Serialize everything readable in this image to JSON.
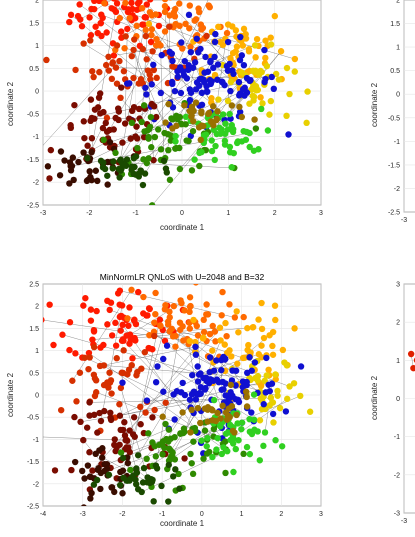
{
  "chart_data": [
    {
      "type": "scatter",
      "title": "",
      "xlabel": "coordinate 1",
      "ylabel": "coordinate 2",
      "xlim": [
        -3,
        3
      ],
      "ylim": [
        -2.5,
        2
      ],
      "xticks": [
        "-3",
        "-2",
        "-1",
        "0",
        "1",
        "2",
        "3"
      ],
      "yticks": [
        "-2.5",
        "-2",
        "-1.5",
        "-1",
        "-0.5",
        "0",
        "0.5",
        "1",
        "1.5",
        "2"
      ],
      "grid": true,
      "clusters": [
        {
          "color": "#ff1a00",
          "cx": -1.3,
          "cy": 1.7,
          "sx": 0.55,
          "sy": 0.35,
          "n": 70
        },
        {
          "color": "#ff6a00",
          "cx": -0.3,
          "cy": 1.5,
          "sx": 0.6,
          "sy": 0.4,
          "n": 60
        },
        {
          "color": "#ffb000",
          "cx": 1.2,
          "cy": 0.9,
          "sx": 0.55,
          "sy": 0.5,
          "n": 60
        },
        {
          "color": "#e8d000",
          "cx": 1.6,
          "cy": 0.1,
          "sx": 0.4,
          "sy": 0.4,
          "n": 40
        },
        {
          "color": "#d63000",
          "cx": -0.9,
          "cy": 0.6,
          "sx": 0.7,
          "sy": 0.35,
          "n": 50
        },
        {
          "color": "#1010d0",
          "cx": 0.5,
          "cy": 0.2,
          "sx": 0.8,
          "sy": 0.45,
          "n": 110
        },
        {
          "color": "#7a0c00",
          "cx": -1.5,
          "cy": -0.9,
          "sx": 0.6,
          "sy": 0.4,
          "n": 60
        },
        {
          "color": "#3a0d00",
          "cx": -2.0,
          "cy": -1.6,
          "sx": 0.4,
          "sy": 0.25,
          "n": 35
        },
        {
          "color": "#2f8a00",
          "cx": -0.3,
          "cy": -1.1,
          "sx": 0.6,
          "sy": 0.35,
          "n": 60
        },
        {
          "color": "#30d020",
          "cx": 0.8,
          "cy": -1.0,
          "sx": 0.45,
          "sy": 0.3,
          "n": 55
        },
        {
          "color": "#1a4a00",
          "cx": -1.2,
          "cy": -1.7,
          "sx": 0.5,
          "sy": 0.2,
          "n": 35
        },
        {
          "color": "#9a7000",
          "cx": 0.5,
          "cy": -0.5,
          "sx": 0.5,
          "sy": 0.2,
          "n": 30
        }
      ]
    },
    {
      "type": "scatter",
      "title": "",
      "xlabel": "",
      "ylabel": "coordinate 2",
      "xlim": [
        -3,
        3
      ],
      "ylim": [
        -2.5,
        2
      ],
      "yticks": [
        "-2.5",
        "-2",
        "-1.5",
        "-1",
        "-0.5",
        "0",
        "0.5",
        "1",
        "1.5",
        "2"
      ],
      "xticks": [
        "-3"
      ],
      "grid": true,
      "clusters": []
    },
    {
      "type": "scatter",
      "title": "MinNormLR QNLoS with U=2048 and B=32",
      "xlabel": "coordinate 1",
      "ylabel": "coordinate 2",
      "xlim": [
        -4,
        3
      ],
      "ylim": [
        -2.5,
        2.5
      ],
      "xticks": [
        "-4",
        "-3",
        "-2",
        "-1",
        "0",
        "1",
        "2",
        "3"
      ],
      "yticks": [
        "-2.5",
        "-2",
        "-1.5",
        "-1",
        "-0.5",
        "0",
        "0.5",
        "1",
        "1.5",
        "2",
        "2.5"
      ],
      "grid": true,
      "clusters": [
        {
          "color": "#ff1a00",
          "cx": -2.0,
          "cy": 1.6,
          "sx": 0.7,
          "sy": 0.4,
          "n": 70
        },
        {
          "color": "#ff6a00",
          "cx": -0.6,
          "cy": 1.6,
          "sx": 0.7,
          "sy": 0.4,
          "n": 60
        },
        {
          "color": "#ffb000",
          "cx": 1.0,
          "cy": 1.0,
          "sx": 0.6,
          "sy": 0.5,
          "n": 60
        },
        {
          "color": "#e8d000",
          "cx": 1.7,
          "cy": 0.0,
          "sx": 0.45,
          "sy": 0.4,
          "n": 35
        },
        {
          "color": "#d63000",
          "cx": -2.2,
          "cy": 0.3,
          "sx": 0.6,
          "sy": 0.5,
          "n": 45
        },
        {
          "color": "#1010d0",
          "cx": 0.4,
          "cy": 0.1,
          "sx": 0.8,
          "sy": 0.45,
          "n": 110
        },
        {
          "color": "#7a0c00",
          "cx": -2.0,
          "cy": -1.0,
          "sx": 0.6,
          "sy": 0.4,
          "n": 55
        },
        {
          "color": "#3a0d00",
          "cx": -2.4,
          "cy": -1.8,
          "sx": 0.45,
          "sy": 0.25,
          "n": 35
        },
        {
          "color": "#2f8a00",
          "cx": -0.6,
          "cy": -1.2,
          "sx": 0.6,
          "sy": 0.4,
          "n": 60
        },
        {
          "color": "#30d020",
          "cx": 0.8,
          "cy": -0.9,
          "sx": 0.45,
          "sy": 0.35,
          "n": 50
        },
        {
          "color": "#1a4a00",
          "cx": -1.4,
          "cy": -1.9,
          "sx": 0.5,
          "sy": 0.2,
          "n": 35
        },
        {
          "color": "#9a7000",
          "cx": 0.3,
          "cy": -0.5,
          "sx": 0.5,
          "sy": 0.25,
          "n": 30
        }
      ]
    },
    {
      "type": "scatter",
      "title": "",
      "xlabel": "",
      "ylabel": "coordinate 2",
      "xlim": [
        -3,
        3
      ],
      "ylim": [
        -3,
        3
      ],
      "yticks": [
        "-3",
        "-2",
        "-1",
        "0",
        "1",
        "2",
        "3"
      ],
      "xticks": [
        "-3"
      ],
      "grid": true,
      "clusters": [
        {
          "color": "#e02000",
          "cx": -2.8,
          "cy": 0.9,
          "sx": 0.08,
          "sy": 0.2,
          "n": 3
        }
      ]
    }
  ]
}
